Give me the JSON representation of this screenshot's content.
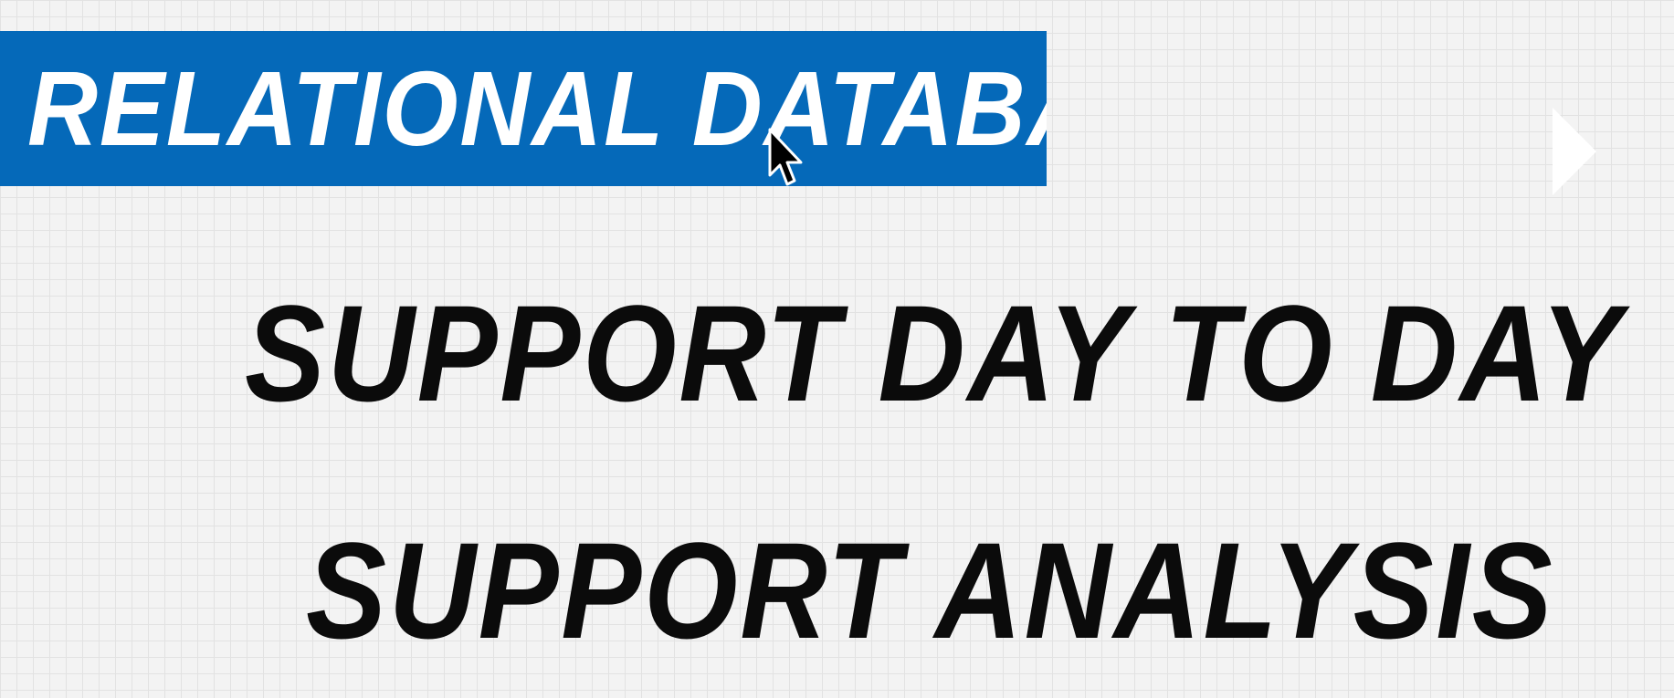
{
  "slide": {
    "title": "RELATIONAL DATABASES",
    "lines": [
      "SUPPORT DAY TO DAY",
      "SUPPORT ANALYSIS"
    ]
  },
  "icons": {
    "next": "next-arrow-icon",
    "cursor": "mouse-cursor-icon"
  },
  "colors": {
    "banner": "#0569b9",
    "title_text": "#ffffff",
    "body_text": "#0b0b0b",
    "background": "#f3f3f3"
  }
}
